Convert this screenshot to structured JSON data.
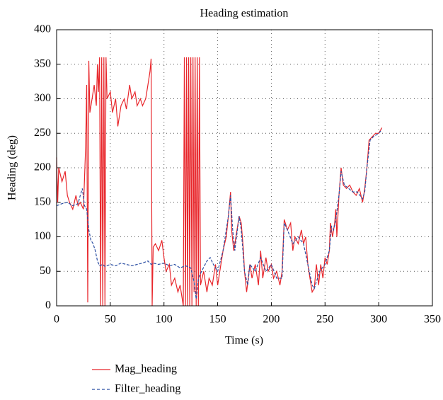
{
  "chart_data": {
    "type": "line",
    "title": "Heading estimation",
    "x_label": "Time (s)",
    "y_label": "Heading (deg)",
    "xlim": [
      0,
      350
    ],
    "xticks": [
      0,
      50,
      100,
      150,
      200,
      250,
      300,
      350
    ],
    "ylim": [
      0,
      400
    ],
    "yticks": [
      0,
      50,
      100,
      150,
      200,
      250,
      300,
      350,
      400
    ],
    "grid": true,
    "legend": "bottom",
    "series": [
      {
        "name": "Mag_heading",
        "color": "#e8262b",
        "dash": "solid",
        "x": [
          0,
          1,
          2,
          5,
          8,
          10,
          12,
          15,
          18,
          20,
          22,
          25,
          27,
          28,
          29,
          30,
          31,
          33,
          35,
          37,
          38,
          39,
          40,
          41,
          42,
          43,
          44,
          45,
          46,
          47,
          50,
          52,
          55,
          57,
          60,
          63,
          65,
          68,
          70,
          73,
          75,
          78,
          80,
          83,
          85,
          87,
          88,
          89,
          90,
          92,
          95,
          98,
          100,
          102,
          105,
          107,
          110,
          113,
          115,
          118,
          119,
          120,
          121,
          122,
          123,
          124,
          125,
          126,
          127,
          128,
          129,
          130,
          131,
          132,
          133,
          134,
          137,
          140,
          142,
          145,
          148,
          150,
          152,
          155,
          158,
          160,
          162,
          163,
          165,
          168,
          170,
          172,
          174,
          175,
          177,
          180,
          182,
          185,
          188,
          190,
          192,
          195,
          197,
          200,
          202,
          205,
          208,
          210,
          212,
          215,
          218,
          220,
          222,
          225,
          228,
          230,
          232,
          234,
          236,
          238,
          240,
          242,
          244,
          246,
          248,
          250,
          252,
          254,
          255,
          257,
          259,
          260,
          261,
          263,
          265,
          267,
          270,
          273,
          276,
          279,
          282,
          285,
          287,
          289,
          291,
          294,
          297,
          300,
          303
        ],
        "values": [
          215,
          150,
          200,
          180,
          195,
          160,
          150,
          140,
          160,
          145,
          150,
          140,
          230,
          320,
          5,
          355,
          280,
          300,
          320,
          290,
          350,
          310,
          360,
          0,
          360,
          0,
          360,
          0,
          360,
          300,
          310,
          280,
          300,
          260,
          290,
          300,
          285,
          320,
          300,
          310,
          290,
          300,
          290,
          300,
          320,
          340,
          358,
          0,
          85,
          90,
          80,
          95,
          70,
          50,
          60,
          30,
          40,
          20,
          30,
          0,
          360,
          0,
          360,
          0,
          360,
          0,
          360,
          0,
          360,
          20,
          360,
          0,
          360,
          0,
          360,
          30,
          50,
          20,
          40,
          30,
          60,
          30,
          50,
          80,
          100,
          130,
          165,
          110,
          80,
          110,
          130,
          120,
          80,
          50,
          20,
          60,
          40,
          60,
          30,
          80,
          40,
          70,
          50,
          60,
          40,
          50,
          30,
          50,
          125,
          110,
          120,
          80,
          100,
          90,
          110,
          90,
          100,
          60,
          40,
          20,
          25,
          60,
          30,
          60,
          40,
          70,
          60,
          80,
          120,
          100,
          120,
          140,
          100,
          160,
          200,
          175,
          170,
          175,
          165,
          160,
          170,
          150,
          170,
          200,
          240,
          245,
          250,
          250,
          258
        ]
      },
      {
        "name": "Filter_heading",
        "color": "#2c4fa3",
        "dash": "dashed",
        "x": [
          0,
          5,
          10,
          15,
          20,
          22,
          24,
          26,
          28,
          30,
          32,
          34,
          36,
          38,
          40,
          43,
          45,
          50,
          55,
          60,
          65,
          70,
          75,
          80,
          85,
          88,
          90,
          95,
          100,
          105,
          110,
          115,
          120,
          125,
          128,
          130,
          132,
          135,
          140,
          143,
          146,
          150,
          155,
          160,
          162,
          164,
          166,
          170,
          172,
          175,
          178,
          180,
          185,
          190,
          195,
          200,
          205,
          210,
          212,
          215,
          220,
          225,
          230,
          234,
          238,
          240,
          245,
          250,
          254,
          256,
          258,
          260,
          263,
          265,
          268,
          272,
          276,
          280,
          285,
          287,
          289,
          292,
          295,
          300,
          303
        ],
        "values": [
          145,
          148,
          150,
          145,
          148,
          160,
          170,
          145,
          140,
          110,
          95,
          90,
          80,
          65,
          58,
          60,
          57,
          60,
          58,
          62,
          60,
          58,
          60,
          62,
          65,
          60,
          62,
          60,
          62,
          58,
          60,
          55,
          58,
          55,
          35,
          10,
          40,
          50,
          65,
          70,
          60,
          50,
          80,
          130,
          160,
          110,
          80,
          130,
          110,
          50,
          30,
          60,
          50,
          70,
          50,
          60,
          40,
          40,
          120,
          110,
          90,
          100,
          90,
          60,
          30,
          25,
          50,
          60,
          80,
          115,
          110,
          125,
          160,
          195,
          175,
          170,
          165,
          165,
          155,
          165,
          200,
          240,
          245,
          250,
          255
        ]
      }
    ]
  }
}
